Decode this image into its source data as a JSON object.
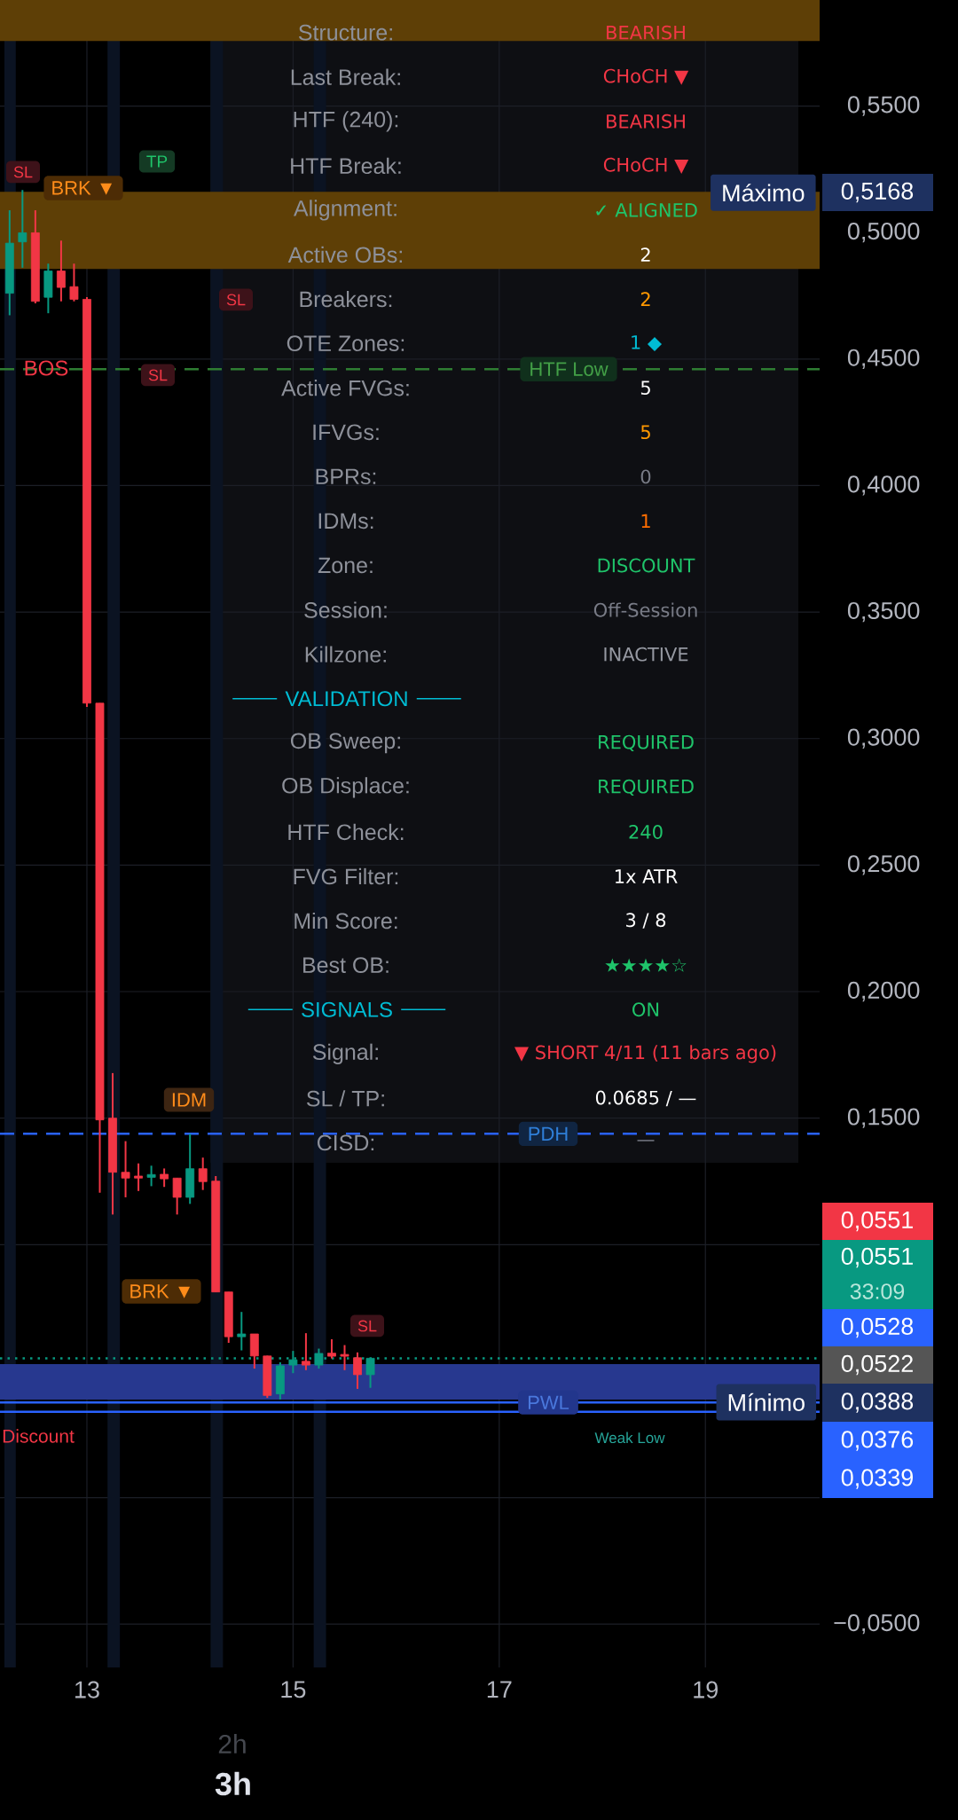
{
  "chart_data": {
    "type": "candlestick",
    "x": [
      12.25,
      12.375,
      12.5,
      12.625,
      12.75,
      12.875,
      13.0,
      13.125,
      13.25,
      13.375,
      13.5,
      13.625,
      13.75,
      13.875,
      14.0,
      14.125,
      14.25,
      14.375,
      14.5,
      14.625,
      14.75,
      14.875,
      15.0,
      15.125,
      15.25,
      15.375,
      15.5,
      15.625,
      15.75
    ],
    "ohlc": [
      [
        0.476,
        0.5088,
        0.4673,
        0.4958
      ],
      [
        0.4963,
        0.5168,
        0.4861,
        0.4999
      ],
      [
        0.4999,
        0.5088,
        0.472,
        0.4728
      ],
      [
        0.4744,
        0.4877,
        0.4681,
        0.4848
      ],
      [
        0.4848,
        0.4968,
        0.4728,
        0.4783
      ],
      [
        0.4786,
        0.4877,
        0.4728,
        0.4736
      ],
      [
        0.4736,
        0.4745,
        0.3125,
        0.314
      ],
      [
        0.314,
        0.314,
        0.1205,
        0.1493
      ],
      [
        0.15,
        0.1678,
        0.1119,
        0.1286
      ],
      [
        0.1286,
        0.1409,
        0.1187,
        0.1263
      ],
      [
        0.1271,
        0.1321,
        0.1212,
        0.1263
      ],
      [
        0.1266,
        0.1312,
        0.1231,
        0.1277
      ],
      [
        0.1278,
        0.1301,
        0.1228,
        0.126
      ],
      [
        0.1263,
        0.1263,
        0.1119,
        0.1187
      ],
      [
        0.1187,
        0.1438,
        0.1161,
        0.13
      ],
      [
        0.13,
        0.1344,
        0.1216,
        0.1249
      ],
      [
        0.1251,
        0.1271,
        0.0813,
        0.0813
      ],
      [
        0.0813,
        0.0813,
        0.0612,
        0.0636
      ],
      [
        0.0636,
        0.0734,
        0.0582,
        0.0647
      ],
      [
        0.0647,
        0.0647,
        0.051,
        0.056
      ],
      [
        0.056,
        0.0561,
        0.0394,
        0.0404
      ],
      [
        0.041,
        0.0535,
        0.0388,
        0.0521
      ],
      [
        0.0524,
        0.058,
        0.0492,
        0.0545
      ],
      [
        0.0539,
        0.065,
        0.0504,
        0.0524
      ],
      [
        0.0524,
        0.0589,
        0.051,
        0.057
      ],
      [
        0.0571,
        0.0626,
        0.055,
        0.0559
      ],
      [
        0.0566,
        0.0603,
        0.0504,
        0.0559
      ],
      [
        0.0553,
        0.0574,
        0.043,
        0.0486
      ],
      [
        0.0486,
        0.0551,
        0.0434,
        0.0551
      ]
    ],
    "colors": [
      "#089981",
      "#089981",
      "#f23645",
      "#089981",
      "#f23645",
      "#f23645",
      "#f23645",
      "#f23645",
      "#f23645",
      "#f23645",
      "#f23645",
      "#089981",
      "#f23645",
      "#f23645",
      "#089981",
      "#f23645",
      "#f23645",
      "#f23645",
      "#089981",
      "#f23645",
      "#f23645",
      "#089981",
      "#089981",
      "#f23645",
      "#089981",
      "#f23645",
      "#f23645",
      "#f23645",
      "#089981"
    ],
    "xlim": [
      12.157,
      20.108
    ],
    "xticks": [
      13,
      15,
      17,
      19
    ],
    "ylim": [
      -0.0671,
      0.5919
    ],
    "yticks": [
      {
        "value": 0.55,
        "label": "0,5500"
      },
      {
        "value": 0.5,
        "label": "0,5000"
      },
      {
        "value": 0.45,
        "label": "0,4500"
      },
      {
        "value": 0.4,
        "label": "0,4000"
      },
      {
        "value": 0.35,
        "label": "0,3500"
      },
      {
        "value": 0.3,
        "label": "0,3000"
      },
      {
        "value": 0.25,
        "label": "0,2500"
      },
      {
        "value": 0.2,
        "label": "0,2000"
      },
      {
        "value": 0.15,
        "label": "0,1500"
      },
      {
        "value": 0.1,
        "label": null
      },
      {
        "value": 0.05,
        "label": null
      },
      {
        "value": 0,
        "label": null
      },
      {
        "value": -0.05,
        "label": "−0,0500"
      }
    ],
    "grid": true,
    "bands": [
      {
        "axis": "x",
        "from": 12.2,
        "to": 12.31,
        "color": "#0b1322"
      },
      {
        "axis": "x",
        "from": 13.2,
        "to": 13.32,
        "color": "#0b1322"
      },
      {
        "axis": "x",
        "from": 14.2,
        "to": 14.32,
        "color": "#0b1322"
      },
      {
        "axis": "x",
        "from": 15.2,
        "to": 15.32,
        "color": "#0b1322"
      },
      {
        "axis": "y",
        "from": 0.5757,
        "to": 0.5919,
        "color": "#5e3f06"
      },
      {
        "axis": "y",
        "from": 0.4856,
        "to": 0.5161,
        "color": "#5e3f06"
      },
      {
        "axis": "y",
        "from": 0.0388,
        "to": 0.0528,
        "color": "#27388f"
      }
    ],
    "ref_lines": [
      {
        "axis": "y",
        "value": 0.446,
        "label": "HTF Low",
        "color": "#2e7d32",
        "line_style": "dashed"
      },
      {
        "axis": "y",
        "value": 0.1438,
        "label": "PDH",
        "color": "#2962ff",
        "line_style": "dashed"
      },
      {
        "axis": "y",
        "value": 0.0551,
        "color": "#089981",
        "line_style": "dotted"
      },
      {
        "axis": "y",
        "value": 0.0376,
        "label": "PWL",
        "color": "#2962ff",
        "line_style": "solid"
      },
      {
        "axis": "y",
        "value": 0.0339,
        "label": "Weak Low",
        "color": "#2962ff",
        "line_style": "solid"
      }
    ],
    "annotations": [
      {
        "text": "Máximo",
        "x": 19.56,
        "y": 0.5168
      },
      {
        "text": "Mínimo",
        "x": 19.59,
        "y": 0.0388
      },
      "0,5168",
      "0,0551",
      "0,0551",
      "33:09",
      "0,0528",
      "0,0522",
      "0,0388",
      "0,0376",
      "0,0339",
      "TP",
      "BRK ▼",
      "SL",
      "SL",
      "SL",
      "BOS",
      "IDM",
      "BRK ▼",
      "SL",
      "Discount",
      "Structure:",
      "BEARISH",
      "Last Break:",
      "CHoCH ▼",
      "HTF (240):",
      "BEARISH",
      "HTF Break:",
      "CHoCH ▼",
      "Alignment:",
      "✓ ALIGNED",
      "Active OBs:",
      "2",
      "Breakers:",
      "2",
      "OTE Zones:",
      "1 ◆",
      "Active FVGs:",
      "5",
      "IFVGs:",
      "5",
      "BPRs:",
      "0",
      "IDMs:",
      "1",
      "Zone:",
      "DISCOUNT",
      "Session:",
      "Off-Session",
      "Killzone:",
      "INACTIVE",
      "VALIDATION",
      "OB Sweep:",
      "REQUIRED",
      "OB Displace:",
      "REQUIRED",
      "HTF Check:",
      "240",
      "FVG Filter:",
      "1x ATR",
      "Min Score:",
      "3 / 8",
      "Best OB:",
      "★★★★☆",
      "SIGNALS",
      "ON",
      "Signal:",
      "▼ SHORT 4/11 (11 bars ago)",
      "SL / TP:",
      "0.0685 / —",
      "CISD:",
      "—",
      "2h",
      "3h"
    ]
  }
}
